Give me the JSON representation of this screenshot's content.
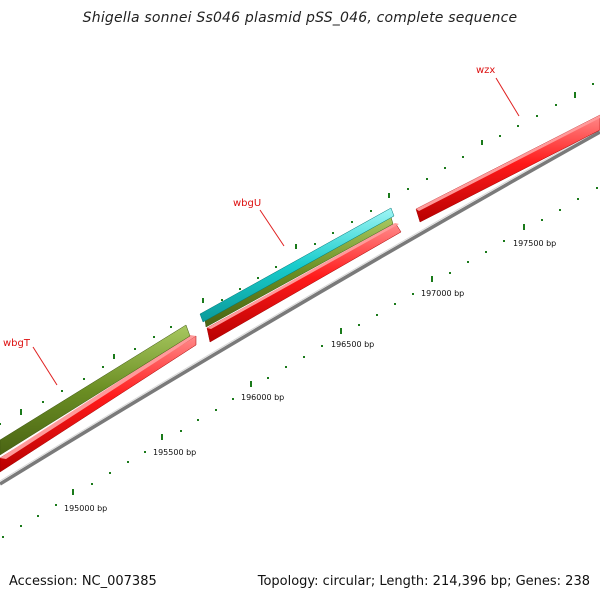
{
  "title": "Shigella sonnei Ss046 plasmid pSS_046, complete sequence",
  "footer": {
    "accession": "Accession: NC_007385",
    "topology": "Topology: circular; Length: 214,396 bp; Genes: 238"
  },
  "colors": {
    "gene_red": "#ff0000",
    "gene_green": "#6b8e23",
    "gene_cyan": "#00cccc",
    "backbone": "#777777",
    "tick": "#1a7a1a",
    "label_red": "#dd1111"
  },
  "genes": [
    {
      "name": "wbgT"
    },
    {
      "name": "wbgU"
    },
    {
      "name": "wzx"
    }
  ],
  "bp_labels": [
    "195000 bp",
    "195500 bp",
    "196000 bp",
    "196500 bp",
    "197000 bp",
    "197500 bp"
  ]
}
